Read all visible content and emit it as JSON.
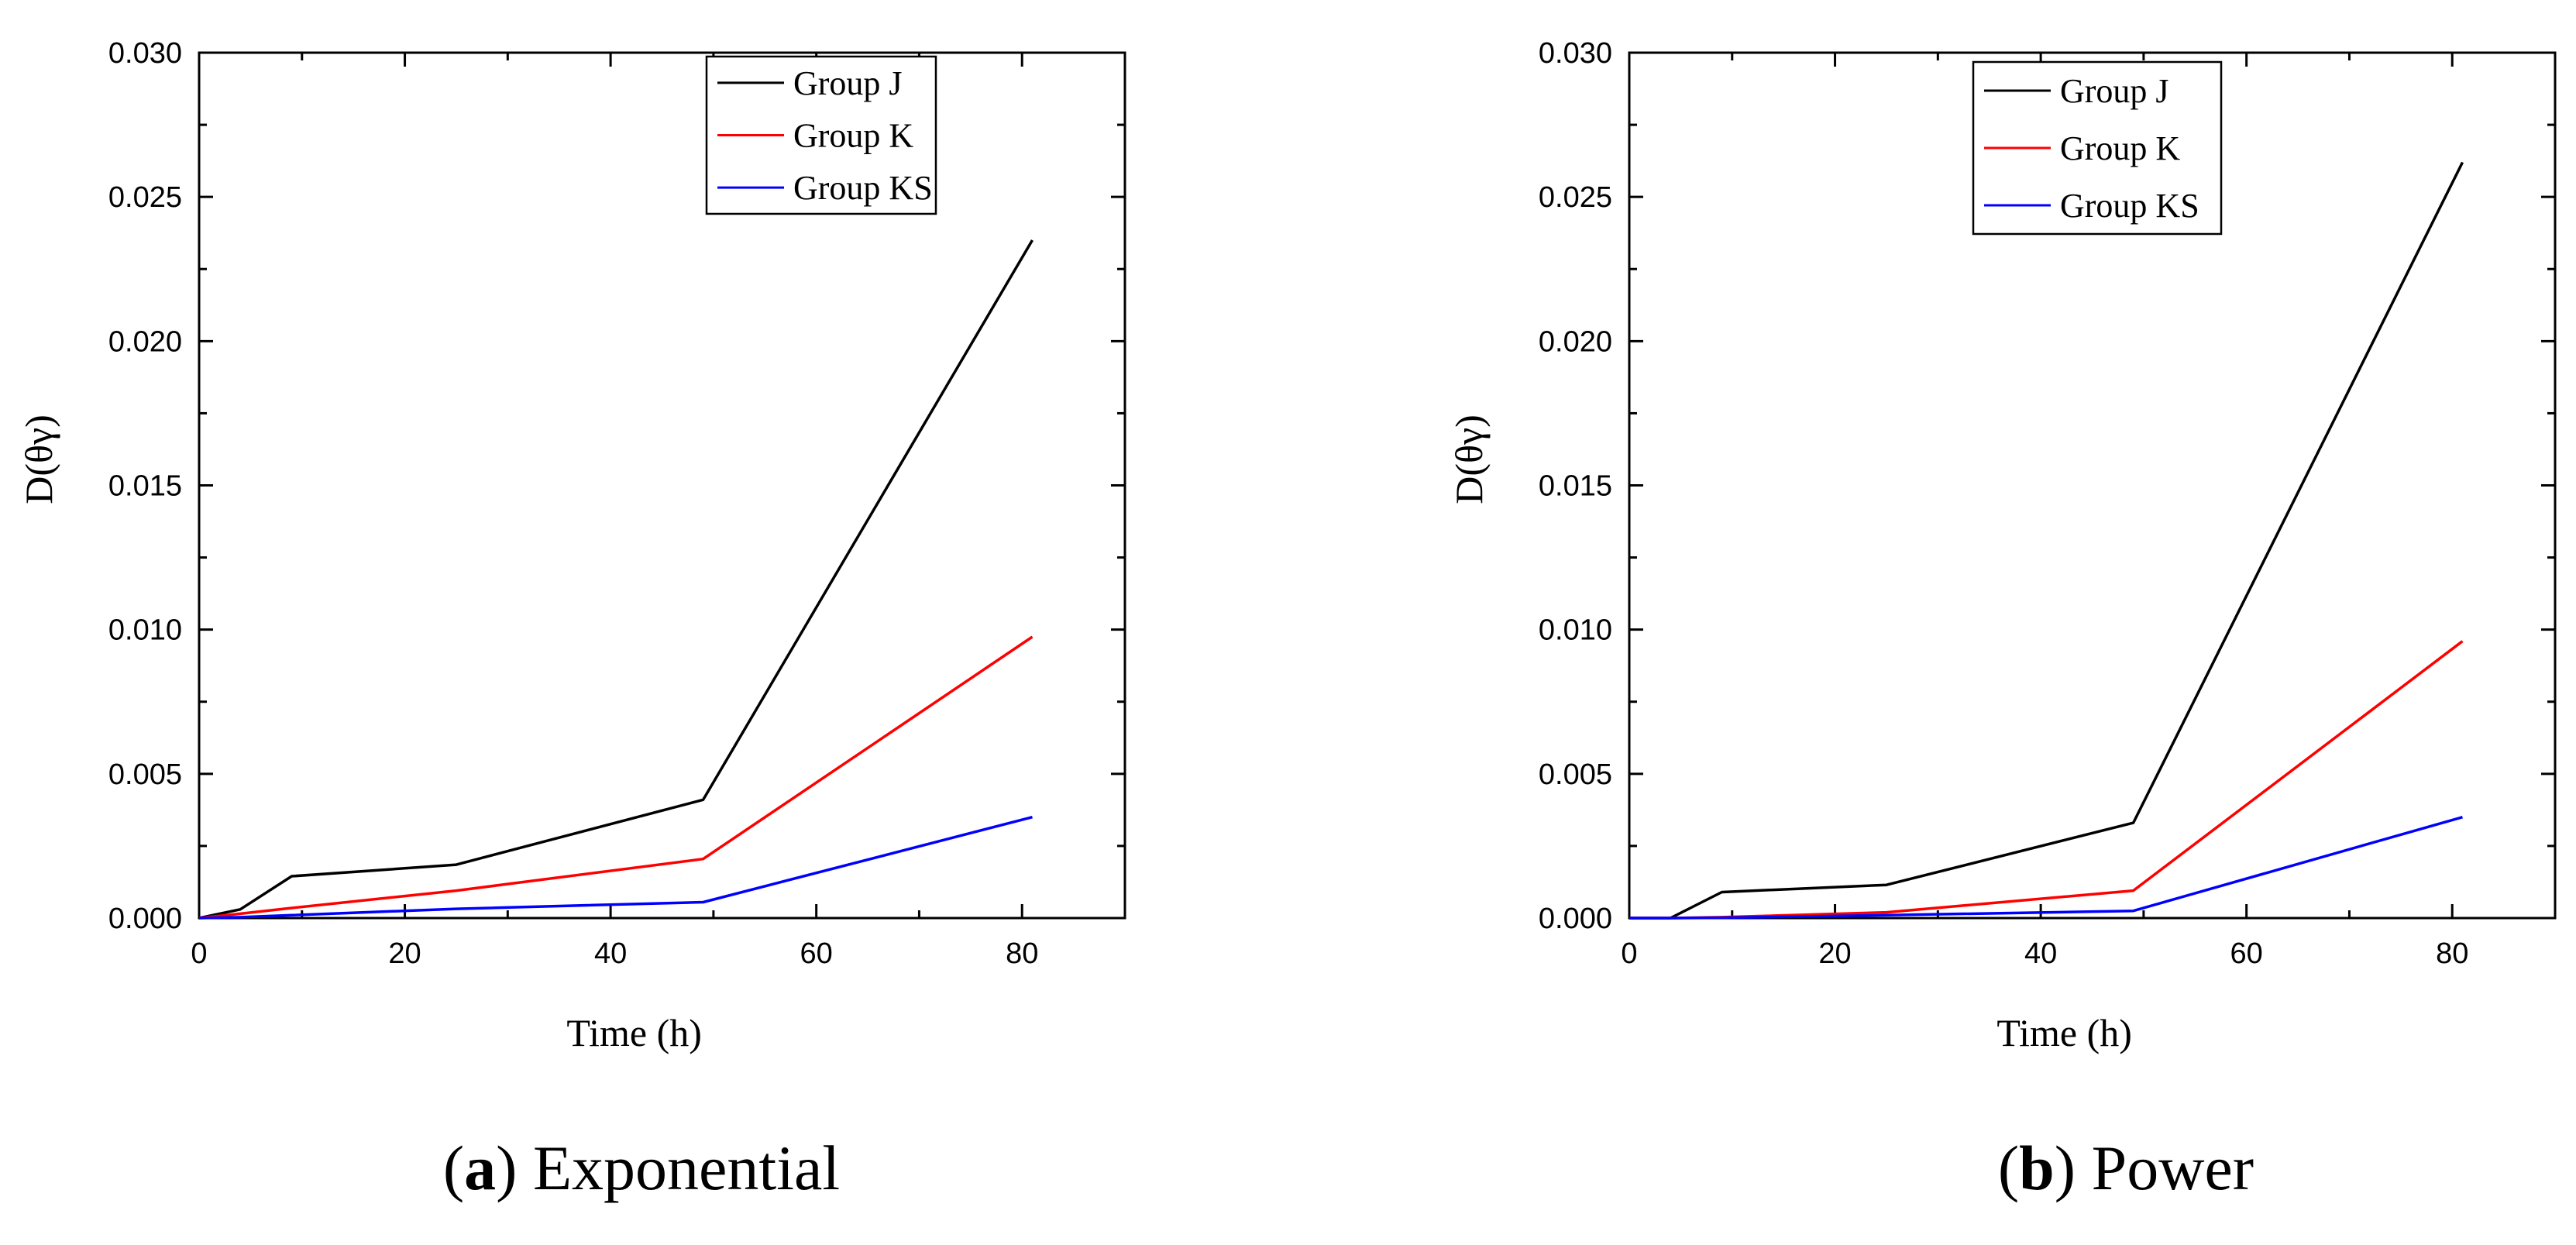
{
  "chart_data": [
    {
      "type": "line",
      "title": "Exponential",
      "caption_letter": "a",
      "xlabel": "Time (h)",
      "ylabel": "D(θγ)",
      "xlim": [
        0,
        90
      ],
      "ylim": [
        0,
        0.03
      ],
      "xticks": [
        "0",
        "20",
        "40",
        "60",
        "80"
      ],
      "yticks": [
        "0.000",
        "0.005",
        "0.010",
        "0.015",
        "0.020",
        "0.025",
        "0.030"
      ],
      "legend_position": "top-center",
      "series": [
        {
          "name": "Group J",
          "color": "#000000",
          "x": [
            0,
            4,
            9,
            25,
            49,
            81
          ],
          "y": [
            0,
            0.0003,
            0.00145,
            0.00185,
            0.0041,
            0.0235
          ]
        },
        {
          "name": "Group K",
          "color": "#ff0000",
          "x": [
            0,
            4,
            9,
            25,
            49,
            81
          ],
          "y": [
            0,
            0.00015,
            0.00035,
            0.00095,
            0.00205,
            0.00975
          ]
        },
        {
          "name": "Group KS",
          "color": "#0000ff",
          "x": [
            0,
            4,
            9,
            25,
            49,
            81
          ],
          "y": [
            0,
            3e-05,
            0.0001,
            0.00032,
            0.00055,
            0.0035
          ]
        }
      ]
    },
    {
      "type": "line",
      "title": "Power",
      "caption_letter": "b",
      "xlabel": "Time (h)",
      "ylabel": "D(θγ)",
      "xlim": [
        0,
        90
      ],
      "ylim": [
        0,
        0.03
      ],
      "xticks": [
        "0",
        "20",
        "40",
        "60",
        "80"
      ],
      "yticks": [
        "0.000",
        "0.005",
        "0.010",
        "0.015",
        "0.020",
        "0.025",
        "0.030"
      ],
      "legend_position": "top-center",
      "series": [
        {
          "name": "Group J",
          "color": "#000000",
          "x": [
            0,
            4,
            9,
            25,
            49,
            81
          ],
          "y": [
            0,
            0,
            0.0009,
            0.00115,
            0.0033,
            0.0262
          ]
        },
        {
          "name": "Group K",
          "color": "#ff0000",
          "x": [
            0,
            4,
            9,
            25,
            49,
            81
          ],
          "y": [
            0,
            0,
            3e-05,
            0.0002,
            0.00095,
            0.0096
          ]
        },
        {
          "name": "Group KS",
          "color": "#0000ff",
          "x": [
            0,
            4,
            9,
            25,
            49,
            81
          ],
          "y": [
            0,
            0,
            1e-05,
            0.0001,
            0.00025,
            0.0035
          ]
        }
      ]
    }
  ]
}
